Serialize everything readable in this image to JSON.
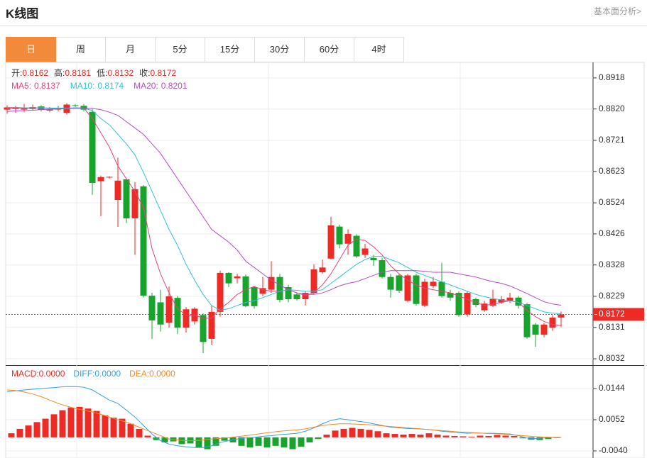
{
  "header": {
    "title": "K线图",
    "link": "基本面分析>"
  },
  "tabs": [
    "日",
    "周",
    "月",
    "5分",
    "15分",
    "30分",
    "60分",
    "4时"
  ],
  "active_tab": 0,
  "chart_data": [
    {
      "type": "candlestick",
      "ylim": [
        0.8012,
        0.8967
      ],
      "yticks": [
        0.8918,
        {
          "value": 0.882,
          "label": "0.8820"
        },
        0.8721,
        0.8623,
        0.8524,
        0.8426,
        0.8328,
        0.8229,
        0.8131,
        0.8032
      ],
      "up_color": "#ee2a24",
      "down_color": "#18a32c",
      "ohlc_labels": [
        "开:",
        "高:",
        "低:",
        "收:"
      ],
      "open": [
        0.8818,
        0.882,
        0.8818,
        0.882,
        0.8828,
        0.8815,
        0.8818,
        0.8808,
        0.8832,
        0.883,
        0.8811,
        0.8592,
        0.8604,
        0.8533,
        0.8598,
        0.8475,
        0.8576,
        0.8231,
        0.821,
        0.8146,
        0.8224,
        0.813,
        0.815,
        0.817,
        0.8095,
        0.818,
        0.8303,
        0.8286,
        0.8292,
        0.8258,
        0.8237,
        0.825,
        0.829,
        0.8258,
        0.8235,
        0.822,
        0.824,
        0.8305,
        0.8348,
        0.8449,
        0.8395,
        0.842,
        0.836,
        0.835,
        0.8343,
        0.829,
        0.8295,
        0.8215,
        0.8295,
        0.82,
        0.8262,
        0.8275,
        0.824,
        0.824,
        0.8172,
        0.822,
        0.8185,
        0.82,
        0.821,
        0.8215,
        0.8225,
        0.8204,
        0.814,
        0.8108,
        0.813,
        0.8162
      ],
      "high": [
        0.8832,
        0.883,
        0.8836,
        0.8834,
        0.8832,
        0.8826,
        0.883,
        0.8838,
        0.8836,
        0.8836,
        0.882,
        0.861,
        0.8608,
        0.8667,
        0.86,
        0.859,
        0.858,
        0.824,
        0.825,
        0.826,
        0.823,
        0.8195,
        0.8195,
        0.8175,
        0.82,
        0.831,
        0.8305,
        0.83,
        0.8298,
        0.8262,
        0.829,
        0.834,
        0.83,
        0.8265,
        0.824,
        0.8245,
        0.833,
        0.8345,
        0.848,
        0.8455,
        0.844,
        0.8425,
        0.8395,
        0.836,
        0.835,
        0.83,
        0.83,
        0.83,
        0.83,
        0.8285,
        0.829,
        0.8335,
        0.825,
        0.8245,
        0.8245,
        0.8225,
        0.8215,
        0.825,
        0.823,
        0.824,
        0.823,
        0.8208,
        0.8145,
        0.8145,
        0.817,
        0.8181
      ],
      "low": [
        0.8805,
        0.8808,
        0.881,
        0.8815,
        0.8812,
        0.881,
        0.8812,
        0.8802,
        0.8826,
        0.8812,
        0.8549,
        0.8482,
        0.86,
        0.8448,
        0.846,
        0.836,
        0.8225,
        0.8095,
        0.8118,
        0.813,
        0.811,
        0.8115,
        0.814,
        0.805,
        0.8075,
        0.8165,
        0.8258,
        0.827,
        0.8195,
        0.819,
        0.823,
        0.824,
        0.821,
        0.821,
        0.8216,
        0.82,
        0.8235,
        0.83,
        0.8345,
        0.838,
        0.836,
        0.835,
        0.835,
        0.8325,
        0.8285,
        0.8225,
        0.824,
        0.821,
        0.82,
        0.8195,
        0.8255,
        0.8225,
        0.8215,
        0.8165,
        0.8165,
        0.8195,
        0.818,
        0.8195,
        0.8205,
        0.8208,
        0.819,
        0.8095,
        0.807,
        0.81,
        0.812,
        0.8132
      ],
      "close": [
        0.8825,
        0.8826,
        0.8822,
        0.8826,
        0.8818,
        0.8818,
        0.8822,
        0.8834,
        0.8831,
        0.8818,
        0.8587,
        0.8605,
        0.8606,
        0.8594,
        0.8475,
        0.8567,
        0.8231,
        0.8153,
        0.814,
        0.8229,
        0.813,
        0.8188,
        0.819,
        0.8085,
        0.818,
        0.8303,
        0.827,
        0.8292,
        0.8198,
        0.8198,
        0.8255,
        0.829,
        0.8218,
        0.822,
        0.822,
        0.824,
        0.8314,
        0.832,
        0.8453,
        0.8393,
        0.8426,
        0.8355,
        0.838,
        0.8343,
        0.829,
        0.825,
        0.8247,
        0.8295,
        0.8205,
        0.8275,
        0.8275,
        0.823,
        0.8225,
        0.817,
        0.824,
        0.8202,
        0.8206,
        0.822,
        0.822,
        0.8225,
        0.82,
        0.81,
        0.8108,
        0.814,
        0.8162,
        0.8172
      ],
      "series": [
        {
          "name": "MA5:",
          "color": "#e5447a",
          "values": [
            0.8822,
            0.8823,
            0.8822,
            0.8823,
            0.8823,
            0.8822,
            0.8821,
            0.8822,
            0.8824,
            0.8823,
            0.879,
            0.8745,
            0.87,
            0.864,
            0.86,
            0.856,
            0.851,
            0.838,
            0.83,
            0.824,
            0.819,
            0.817,
            0.817,
            0.816,
            0.816,
            0.819,
            0.821,
            0.8235,
            0.825,
            0.826,
            0.825,
            0.8245,
            0.8245,
            0.825,
            0.824,
            0.8232,
            0.824,
            0.8265,
            0.83,
            0.8345,
            0.839,
            0.841,
            0.8405,
            0.8385,
            0.836,
            0.8325,
            0.83,
            0.828,
            0.8265,
            0.8255,
            0.825,
            0.8245,
            0.824,
            0.823,
            0.822,
            0.821,
            0.82,
            0.8205,
            0.821,
            0.8215,
            0.821,
            0.8185,
            0.8165,
            0.815,
            0.814,
            0.8137
          ]
        },
        {
          "name": "MA10:",
          "color": "#33c0d4",
          "values": [
            0.8825,
            0.8825,
            0.8824,
            0.8824,
            0.8824,
            0.8823,
            0.8823,
            0.8823,
            0.8823,
            0.8823,
            0.8815,
            0.879,
            0.877,
            0.874,
            0.871,
            0.8675,
            0.862,
            0.856,
            0.85,
            0.844,
            0.839,
            0.833,
            0.828,
            0.8235,
            0.82,
            0.8185,
            0.819,
            0.82,
            0.821,
            0.8215,
            0.8225,
            0.8235,
            0.8245,
            0.825,
            0.8248,
            0.8245,
            0.8245,
            0.825,
            0.827,
            0.829,
            0.831,
            0.833,
            0.8345,
            0.8355,
            0.8355,
            0.8345,
            0.8335,
            0.832,
            0.8305,
            0.8295,
            0.8285,
            0.8275,
            0.8265,
            0.8255,
            0.8245,
            0.8235,
            0.8228,
            0.8222,
            0.8218,
            0.8215,
            0.821,
            0.82,
            0.819,
            0.818,
            0.8176,
            0.8174
          ]
        },
        {
          "name": "MA20:",
          "color": "#b24cc4",
          "values": [
            0.8812,
            0.8814,
            0.8815,
            0.8816,
            0.8818,
            0.8819,
            0.882,
            0.8821,
            0.8822,
            0.8822,
            0.8822,
            0.8818,
            0.881,
            0.88,
            0.878,
            0.876,
            0.874,
            0.871,
            0.868,
            0.864,
            0.86,
            0.856,
            0.852,
            0.848,
            0.844,
            0.842,
            0.84,
            0.8375,
            0.834,
            0.832,
            0.83,
            0.828,
            0.8265,
            0.825,
            0.824,
            0.8235,
            0.8235,
            0.824,
            0.825,
            0.8262,
            0.827,
            0.8275,
            0.8285,
            0.8295,
            0.8305,
            0.831,
            0.831,
            0.831,
            0.831,
            0.8308,
            0.8305,
            0.8305,
            0.8305,
            0.83,
            0.8295,
            0.829,
            0.8282,
            0.8275,
            0.827,
            0.8262,
            0.825,
            0.8238,
            0.8225,
            0.8212,
            0.8205,
            0.8201
          ]
        }
      ]
    },
    {
      "type": "macd",
      "ylim": [
        -0.0061,
        0.0209
      ],
      "yticks": [
        0.0144,
        0.0052,
        {
          "value": -0.004,
          "label": "-0.0040"
        }
      ],
      "up_color": "#ee2a24",
      "down_color": "#18a32c",
      "readouts": [
        {
          "name": "MACD:",
          "value": "0.0000",
          "color": "#ee2a24"
        },
        {
          "name": "DIFF:",
          "value": "0.0000",
          "color": "#3b9fe0"
        },
        {
          "name": "DEA:",
          "value": "0.0000",
          "color": "#f08a2a"
        }
      ],
      "values": [
        0.0012,
        0.0025,
        0.0035,
        0.0045,
        0.0055,
        0.0068,
        0.008,
        0.0088,
        0.009,
        0.0085,
        0.0078,
        0.0065,
        0.0058,
        0.0055,
        0.004,
        0.0025,
        0.0005,
        -0.0008,
        -0.0015,
        -0.0012,
        -0.002,
        -0.0018,
        -0.003,
        -0.0035,
        -0.0025,
        -0.001,
        -0.0015,
        -0.0025,
        -0.003,
        -0.0025,
        -0.003,
        -0.0025,
        -0.003,
        -0.0035,
        -0.0028,
        -0.0015,
        -0.0005,
        0.0008,
        0.002,
        0.0025,
        0.0028,
        0.0025,
        0.0022,
        0.0018,
        0.0012,
        0.001,
        0.0008,
        0.001,
        0.0008,
        0.0012,
        0.0008,
        0.0005,
        0.0004,
        0.0003,
        0.0002,
        0.0005,
        0.0004,
        0.0007,
        0.0005,
        0.0004,
        -0.0003,
        -0.0007,
        -0.0008,
        -0.0005,
        -0.0002,
        0
      ],
      "series": [
        {
          "name": "DIFF",
          "color": "#3b9fe0",
          "values": [
            0.0135,
            0.0137,
            0.014,
            0.0142,
            0.0144,
            0.0146,
            0.0148,
            0.015,
            0.015,
            0.0148,
            0.014,
            0.0125,
            0.011,
            0.01,
            0.008,
            0.006,
            0.0035,
            0.001,
            -0.001,
            -0.002,
            -0.0025,
            -0.0028,
            -0.003,
            -0.003,
            -0.0025,
            -0.0015,
            -0.001,
            -0.0005,
            -0.0002,
            0,
            0.0003,
            0.0005,
            0.0008,
            0.001,
            0.0012,
            0.0018,
            0.0028,
            0.004,
            0.005,
            0.0055,
            0.0052,
            0.0048,
            0.0045,
            0.004,
            0.0035,
            0.003,
            0.0028,
            0.0026,
            0.0025,
            0.0024,
            0.0022,
            0.0018,
            0.0016,
            0.0014,
            0.0012,
            0.0013,
            0.0012,
            0.0012,
            0.0011,
            0.001,
            0.0005,
            -0.0002,
            -0.0004,
            -0.0002,
            0,
            0
          ]
        },
        {
          "name": "DEA",
          "color": "#f08a2a",
          "values": [
            0.014,
            0.0138,
            0.0134,
            0.0128,
            0.012,
            0.011,
            0.01,
            0.0092,
            0.0085,
            0.008,
            0.0075,
            0.0068,
            0.006,
            0.0052,
            0.0045,
            0.0035,
            0.0025,
            0.0015,
            0.0005,
            -0.0005,
            -0.0008,
            -0.001,
            -0.001,
            -0.0008,
            -0.0005,
            -0.0003,
            -0.0001,
            0.0002,
            0.0005,
            0.0008,
            0.0012,
            0.0015,
            0.0018,
            0.002,
            0.0022,
            0.0025,
            0.003,
            0.0035,
            0.0038,
            0.004,
            0.004,
            0.0039,
            0.0038,
            0.0036,
            0.0034,
            0.0032,
            0.003,
            0.0028,
            0.0026,
            0.0024,
            0.0022,
            0.002,
            0.0018,
            0.0016,
            0.0015,
            0.0013,
            0.0012,
            0.0011,
            0.001,
            0.0008,
            0.0006,
            0.0004,
            0.0002,
            0.0001,
            0,
            0
          ]
        }
      ]
    }
  ]
}
